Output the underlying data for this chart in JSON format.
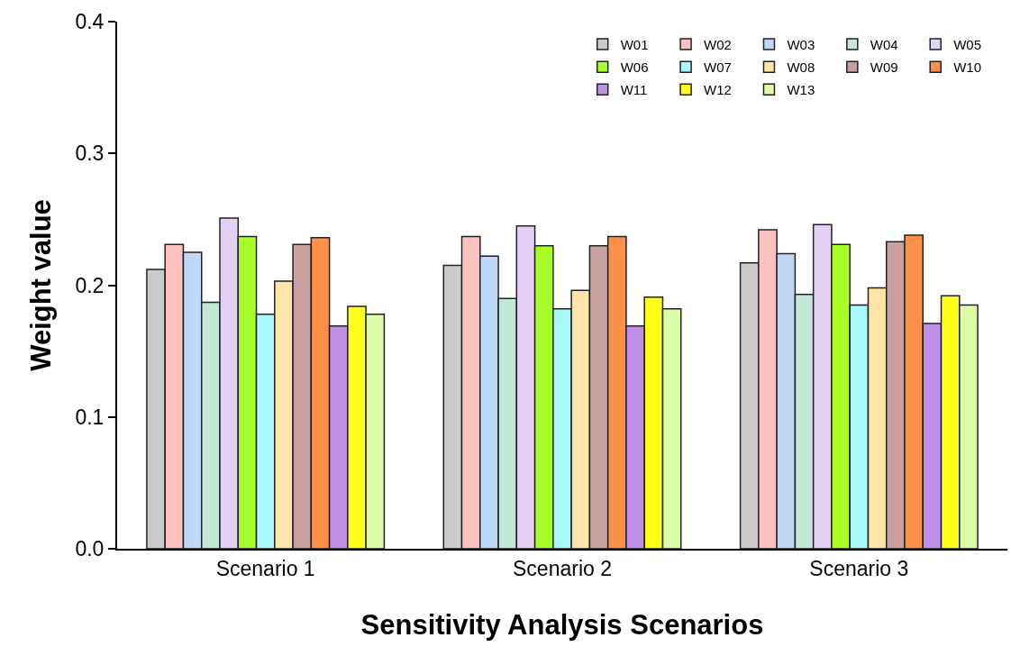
{
  "chart_data": {
    "type": "bar",
    "xlabel": "Sensitivity Analysis Scenarios",
    "ylabel": "Weight value",
    "categories": [
      "Scenario 1",
      "Scenario 2",
      "Scenario 3"
    ],
    "series": [
      {
        "name": "W01",
        "color": "#cccccc",
        "values": [
          0.212,
          0.215,
          0.217
        ]
      },
      {
        "name": "W02",
        "color": "#ffc0c0",
        "values": [
          0.231,
          0.237,
          0.242
        ]
      },
      {
        "name": "W03",
        "color": "#c0d8f8",
        "values": [
          0.225,
          0.222,
          0.224
        ]
      },
      {
        "name": "W04",
        "color": "#c4e8d8",
        "values": [
          0.187,
          0.19,
          0.193
        ]
      },
      {
        "name": "W05",
        "color": "#e4d0f4",
        "values": [
          0.251,
          0.245,
          0.246
        ]
      },
      {
        "name": "W06",
        "color": "#a8ff28",
        "values": [
          0.237,
          0.23,
          0.231
        ]
      },
      {
        "name": "W07",
        "color": "#a8f8fc",
        "values": [
          0.178,
          0.182,
          0.185
        ]
      },
      {
        "name": "W08",
        "color": "#ffe6a8",
        "values": [
          0.203,
          0.196,
          0.198
        ]
      },
      {
        "name": "W09",
        "color": "#c8a0a0",
        "values": [
          0.231,
          0.23,
          0.233
        ]
      },
      {
        "name": "W10",
        "color": "#ff9048",
        "values": [
          0.236,
          0.237,
          0.238
        ]
      },
      {
        "name": "W11",
        "color": "#c090e8",
        "values": [
          0.169,
          0.169,
          0.171
        ]
      },
      {
        "name": "W12",
        "color": "#ffff18",
        "values": [
          0.184,
          0.191,
          0.192
        ]
      },
      {
        "name": "W13",
        "color": "#dcfca8",
        "values": [
          0.178,
          0.182,
          0.185
        ]
      }
    ],
    "ylim": [
      0,
      0.4
    ],
    "yticks": [
      {
        "value": 0,
        "label": "0.0"
      },
      0.1,
      0.2,
      0.3,
      0.4
    ],
    "grid": false,
    "legend": "top right"
  }
}
